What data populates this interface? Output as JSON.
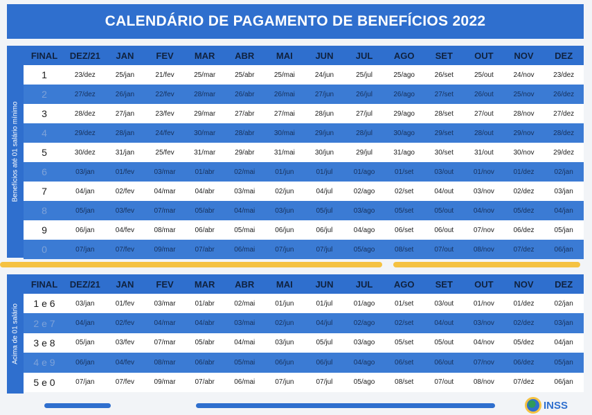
{
  "title": "CALENDÁRIO DE PAGAMENTO DE BENEFÍCIOS 2022",
  "colors": {
    "blue": "#2f6fce",
    "stripe": "#3b7bd4",
    "yellow": "#f5c242",
    "green": "#2f9a5a"
  },
  "headers": [
    "FINAL",
    "DEZ/21",
    "JAN",
    "FEV",
    "MAR",
    "ABR",
    "MAI",
    "JUN",
    "JUL",
    "AGO",
    "SET",
    "OUT",
    "NOV",
    "DEZ"
  ],
  "section1": {
    "side_label": "Benefícios até 01 salário mínimo",
    "rows": [
      [
        "1",
        "23/dez",
        "25/jan",
        "21/fev",
        "25/mar",
        "25/abr",
        "25/mai",
        "24/jun",
        "25/jul",
        "25/ago",
        "26/set",
        "25/out",
        "24/nov",
        "23/dez"
      ],
      [
        "2",
        "27/dez",
        "26/jan",
        "22/fev",
        "28/mar",
        "26/abr",
        "26/mai",
        "27/jun",
        "26/jul",
        "26/ago",
        "27/set",
        "26/out",
        "25/nov",
        "26/dez"
      ],
      [
        "3",
        "28/dez",
        "27/jan",
        "23/fev",
        "29/mar",
        "27/abr",
        "27/mai",
        "28/jun",
        "27/jul",
        "29/ago",
        "28/set",
        "27/out",
        "28/nov",
        "27/dez"
      ],
      [
        "4",
        "29/dez",
        "28/jan",
        "24/fev",
        "30/mar",
        "28/abr",
        "30/mai",
        "29/jun",
        "28/jul",
        "30/ago",
        "29/set",
        "28/out",
        "29/nov",
        "28/dez"
      ],
      [
        "5",
        "30/dez",
        "31/jan",
        "25/fev",
        "31/mar",
        "29/abr",
        "31/mai",
        "30/jun",
        "29/jul",
        "31/ago",
        "30/set",
        "31/out",
        "30/nov",
        "29/dez"
      ],
      [
        "6",
        "03/jan",
        "01/fev",
        "03/mar",
        "01/abr",
        "02/mai",
        "01/jun",
        "01/jul",
        "01/ago",
        "01/set",
        "03/out",
        "01/nov",
        "01/dez",
        "02/jan"
      ],
      [
        "7",
        "04/jan",
        "02/fev",
        "04/mar",
        "04/abr",
        "03/mai",
        "02/jun",
        "04/jul",
        "02/ago",
        "02/set",
        "04/out",
        "03/nov",
        "02/dez",
        "03/jan"
      ],
      [
        "8",
        "05/jan",
        "03/fev",
        "07/mar",
        "05/abr",
        "04/mai",
        "03/jun",
        "05/jul",
        "03/ago",
        "05/set",
        "05/out",
        "04/nov",
        "05/dez",
        "04/jan"
      ],
      [
        "9",
        "06/jan",
        "04/fev",
        "08/mar",
        "06/abr",
        "05/mai",
        "06/jun",
        "06/jul",
        "04/ago",
        "06/set",
        "06/out",
        "07/nov",
        "06/dez",
        "05/jan"
      ],
      [
        "0",
        "07/jan",
        "07/fev",
        "09/mar",
        "07/abr",
        "06/mai",
        "07/jun",
        "07/jul",
        "05/ago",
        "08/set",
        "07/out",
        "08/nov",
        "07/dez",
        "06/jan"
      ]
    ]
  },
  "section2": {
    "side_label": "Acima de 01 salário",
    "rows": [
      [
        "1 e 6",
        "03/jan",
        "01/fev",
        "03/mar",
        "01/abr",
        "02/mai",
        "01/jun",
        "01/jul",
        "01/ago",
        "01/set",
        "03/out",
        "01/nov",
        "01/dez",
        "02/jan"
      ],
      [
        "2 e 7",
        "04/jan",
        "02/fev",
        "04/mar",
        "04/abr",
        "03/mai",
        "02/jun",
        "04/jul",
        "02/ago",
        "02/set",
        "04/out",
        "03/nov",
        "02/dez",
        "03/jan"
      ],
      [
        "3 e 8",
        "05/jan",
        "03/fev",
        "07/mar",
        "05/abr",
        "04/mai",
        "03/jun",
        "05/jul",
        "03/ago",
        "05/set",
        "05/out",
        "04/nov",
        "05/dez",
        "04/jan"
      ],
      [
        "4 e 9",
        "06/jan",
        "04/fev",
        "08/mar",
        "06/abr",
        "05/mai",
        "06/jun",
        "06/jul",
        "04/ago",
        "06/set",
        "06/out",
        "07/nov",
        "06/dez",
        "05/jan"
      ],
      [
        "5 e 0",
        "07/jan",
        "07/fev",
        "09/mar",
        "07/abr",
        "06/mai",
        "07/jun",
        "07/jul",
        "05/ago",
        "08/set",
        "07/out",
        "08/nov",
        "07/dez",
        "06/jan"
      ]
    ]
  },
  "logo_text": "INSS"
}
